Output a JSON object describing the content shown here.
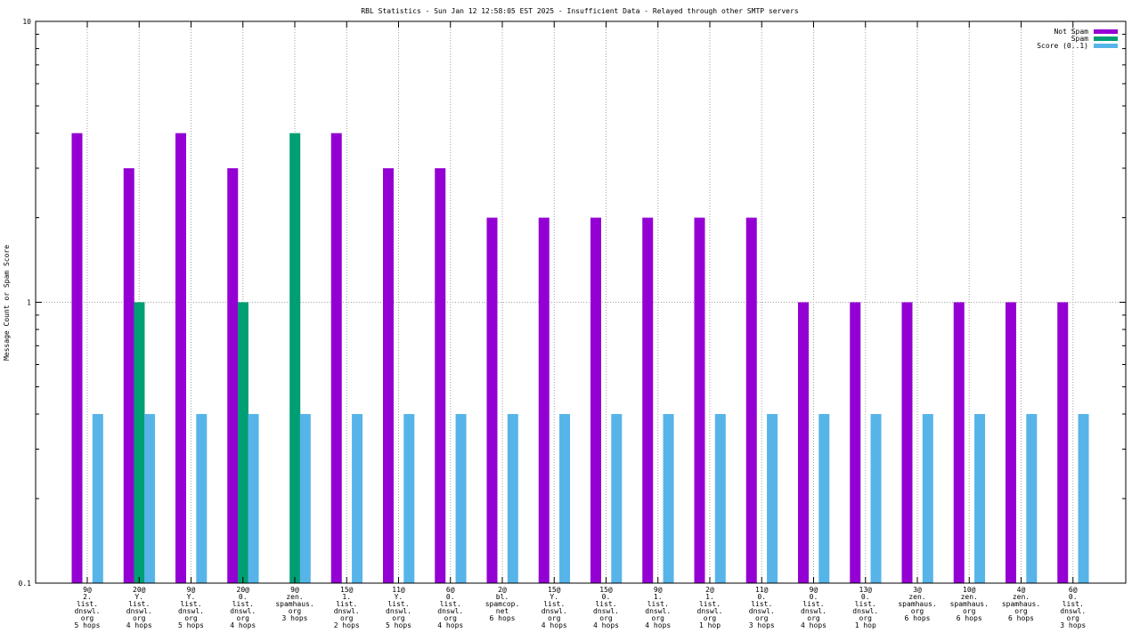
{
  "chart_data": {
    "type": "bar",
    "title": "RBL Statistics - Sun Jan 12 12:58:05 EST 2025 - Insufficient Data - Relayed through other SMTP servers",
    "xlabel": "",
    "ylabel": "Message Count or Spam Score",
    "yscale": "log",
    "ylim": [
      0.1,
      10
    ],
    "yticks": [
      "0.1",
      "1",
      "10"
    ],
    "grid": true,
    "legend_position": "top-right",
    "categories": [
      [
        "9@",
        "2.",
        "list.",
        "dnswl.",
        "org",
        "5 hops"
      ],
      [
        "20@",
        "Y.",
        "list.",
        "dnswl.",
        "org",
        "4 hops"
      ],
      [
        "9@",
        "Y.",
        "list.",
        "dnswl.",
        "org",
        "5 hops"
      ],
      [
        "20@",
        "0.",
        "list.",
        "dnswl.",
        "org",
        "4 hops"
      ],
      [
        "9@",
        "zen.",
        "spamhaus.",
        "org",
        "3 hops"
      ],
      [
        "15@",
        "1.",
        "list.",
        "dnswl.",
        "org",
        "2 hops"
      ],
      [
        "11@",
        "Y.",
        "list.",
        "dnswl.",
        "org",
        "5 hops"
      ],
      [
        "6@",
        "0.",
        "list.",
        "dnswl.",
        "org",
        "4 hops"
      ],
      [
        "2@",
        "bl.",
        "spamcop.",
        "net",
        "6 hops"
      ],
      [
        "15@",
        "Y.",
        "list.",
        "dnswl.",
        "org",
        "4 hops"
      ],
      [
        "15@",
        "0.",
        "list.",
        "dnswl.",
        "org",
        "4 hops"
      ],
      [
        "9@",
        "1.",
        "list.",
        "dnswl.",
        "org",
        "4 hops"
      ],
      [
        "2@",
        "1.",
        "list.",
        "dnswl.",
        "org",
        "1 hop"
      ],
      [
        "11@",
        "0.",
        "list.",
        "dnswl.",
        "org",
        "3 hops"
      ],
      [
        "9@",
        "0.",
        "list.",
        "dnswl.",
        "org",
        "4 hops"
      ],
      [
        "13@",
        "0.",
        "list.",
        "dnswl.",
        "org",
        "1 hop"
      ],
      [
        "3@",
        "zen.",
        "spamhaus.",
        "org",
        "6 hops"
      ],
      [
        "10@",
        "zen.",
        "spamhaus.",
        "org",
        "6 hops"
      ],
      [
        "4@",
        "zen.",
        "spamhaus.",
        "org",
        "6 hops"
      ],
      [
        "6@",
        "0.",
        "list.",
        "dnswl.",
        "org",
        "3 hops"
      ]
    ],
    "series": [
      {
        "name": "Not Spam",
        "color": "#9400d3",
        "values": [
          4,
          3,
          4,
          3,
          0,
          4,
          3,
          3,
          2,
          2,
          2,
          2,
          2,
          2,
          1,
          1,
          1,
          1,
          1,
          1
        ]
      },
      {
        "name": "Spam",
        "color": "#009e73",
        "values": [
          0,
          1,
          0,
          1,
          4,
          0,
          0,
          0,
          0,
          0,
          0,
          0,
          0,
          0,
          0,
          0,
          0,
          0,
          0,
          0
        ]
      },
      {
        "name": "Score (0..1)",
        "color": "#56b4e9",
        "values": [
          0.4,
          0.4,
          0.4,
          0.4,
          0.4,
          0.4,
          0.4,
          0.4,
          0.4,
          0.4,
          0.4,
          0.4,
          0.4,
          0.4,
          0.4,
          0.4,
          0.4,
          0.4,
          0.4,
          0.4
        ]
      }
    ]
  }
}
